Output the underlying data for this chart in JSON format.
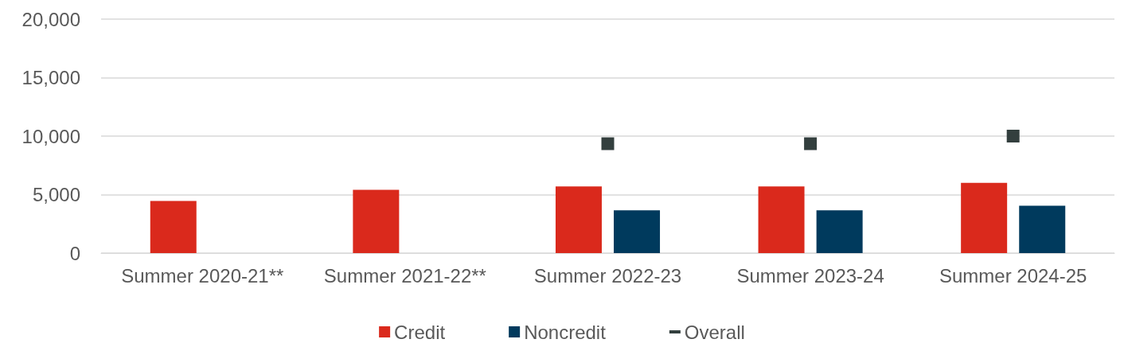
{
  "chart_data": {
    "type": "bar",
    "categories": [
      "Summer 2020-21**",
      "Summer 2021-22**",
      "Summer 2022-23",
      "Summer 2023-24",
      "Summer 2024-25"
    ],
    "series": [
      {
        "name": "Credit",
        "color": "#da291c",
        "values": [
          4450,
          5400,
          5700,
          5700,
          6000
        ]
      },
      {
        "name": "Noncredit",
        "color": "#003a5d",
        "values": [
          null,
          null,
          3650,
          3650,
          4050
        ]
      },
      {
        "name": "Overall",
        "type": "scatter",
        "marker": "square",
        "color": "#333f3e",
        "values": [
          null,
          null,
          9350,
          9350,
          10000
        ]
      }
    ],
    "ylim": [
      0,
      20000
    ],
    "yticks": [
      0,
      {
        "value": 5000,
        "label": "5,000"
      },
      {
        "value": 10000,
        "label": "10,000"
      },
      {
        "value": 15000,
        "label": "15,000"
      },
      {
        "value": 20000,
        "label": "20,000"
      }
    ],
    "grid": "y",
    "legend": "bottom"
  }
}
